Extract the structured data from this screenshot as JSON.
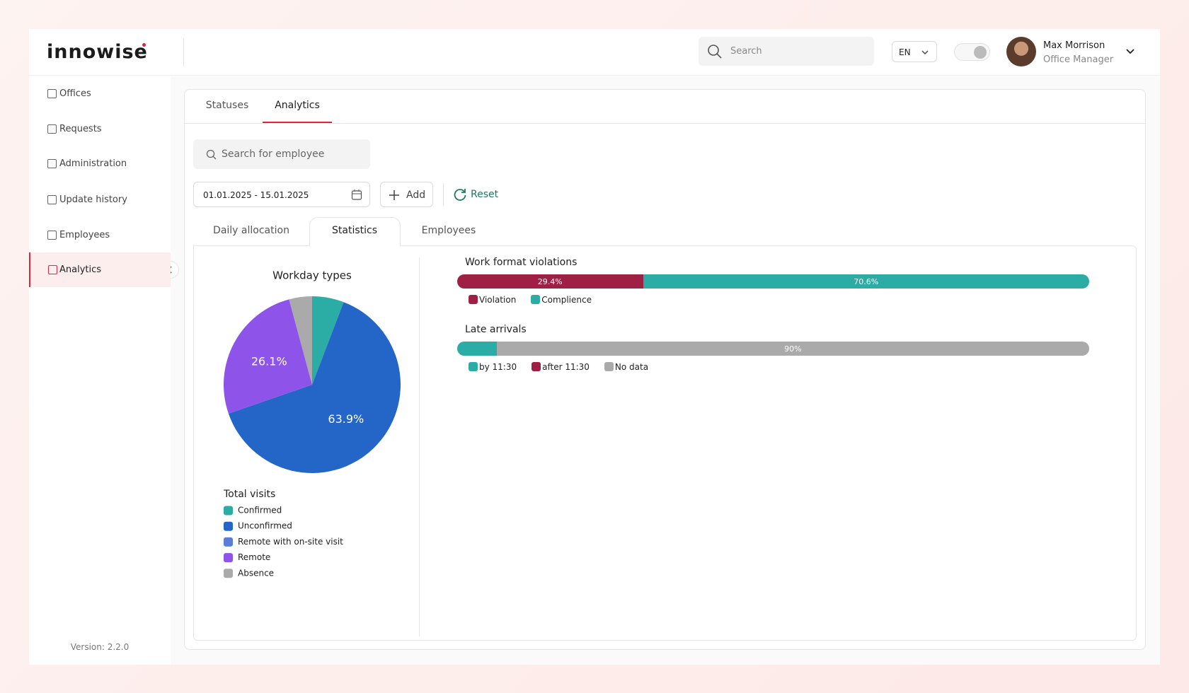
{
  "header": {
    "logo": "innowise",
    "search_placeholder": "Search",
    "language": "EN",
    "user": {
      "name": "Max Morrison",
      "role": "Office Manager"
    }
  },
  "sidebar": {
    "items": [
      "Offices",
      "Requests",
      "Administration",
      "Update history",
      "Employees",
      "Analytics"
    ],
    "version": "Version: 2.2.0"
  },
  "tabs": [
    "Statuses",
    "Analytics"
  ],
  "filters": {
    "employee_search": "Search for employee",
    "date_range": "01.01.2025 - 15.01.2025",
    "add": "Add",
    "reset": "Reset"
  },
  "subtabs": [
    "Daily allocation",
    "Statistics",
    "Employees"
  ],
  "chart_data": [
    {
      "type": "pie",
      "title": "Workday types",
      "legend_title": "Total visits",
      "categories": [
        "Confirmed",
        "Unconfirmed",
        "Remote with on-site visit",
        "Remote",
        "Absence"
      ],
      "values": [
        5.8,
        63.9,
        0,
        26.1,
        4.2
      ],
      "value_labels": [
        null,
        "63.9%",
        null,
        "26.1%",
        null
      ],
      "colors": [
        "#2bada5",
        "#2466c8",
        "#5b7fd6",
        "#8e54e9",
        "#aaaaaa"
      ]
    },
    {
      "type": "bar",
      "orientation": "horizontal",
      "stacked": true,
      "title": "Work format violations",
      "series": [
        {
          "name": "Violation",
          "color": "#a01f45",
          "values": [
            29.4
          ],
          "value_labels": [
            "29.4%"
          ]
        },
        {
          "name": "Complience",
          "color": "#2bada5",
          "values": [
            70.6
          ],
          "value_labels": [
            "70.6%"
          ]
        }
      ]
    },
    {
      "type": "bar",
      "orientation": "horizontal",
      "stacked": true,
      "title": "Late arrivals",
      "series": [
        {
          "name": "by 11:30",
          "color": "#2bada5",
          "values": [
            6
          ]
        },
        {
          "name": "after 11:30",
          "color": "#a01f45",
          "values": [
            0
          ]
        },
        {
          "name": "No data",
          "color": "#aaaaaa",
          "values": [
            90
          ],
          "value_labels": [
            "90%"
          ]
        }
      ]
    }
  ]
}
